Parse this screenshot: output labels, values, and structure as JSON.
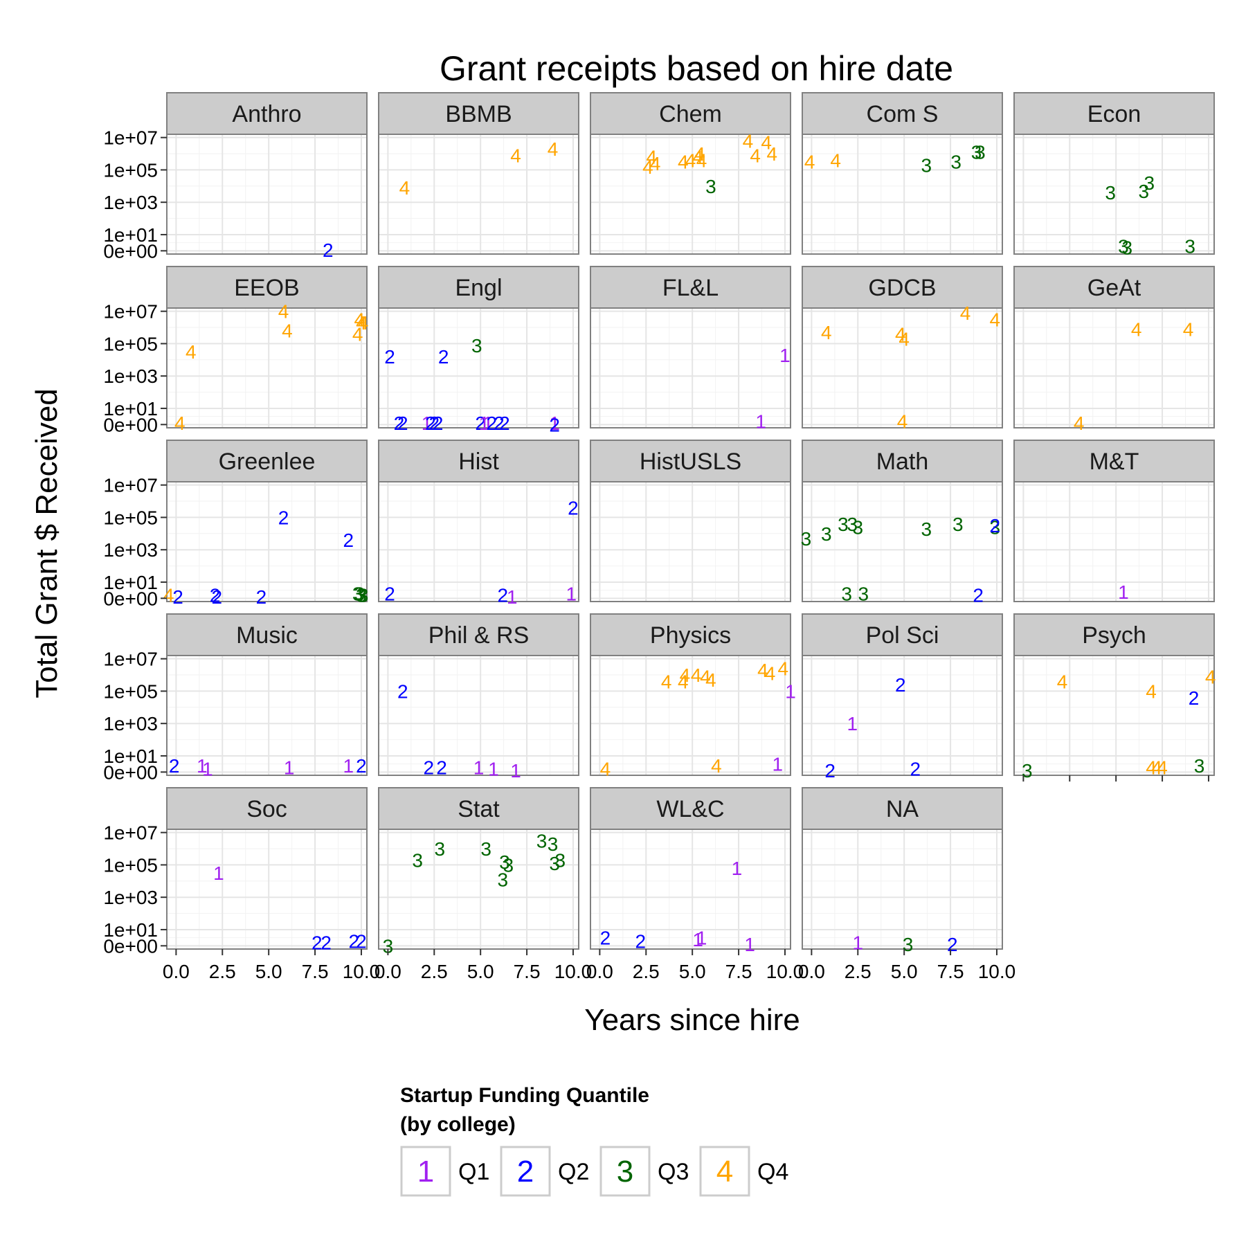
{
  "chart_data": {
    "type": "scatter",
    "title": "Grant receipts based on hire date",
    "xlabel": "Years since hire",
    "ylabel": "Total Grant $ Received",
    "x_ticks": [
      "0.0",
      "2.5",
      "5.0",
      "7.5",
      "10.0"
    ],
    "xlim": [
      -0.5,
      10.3
    ],
    "y_ticks": [
      "1e+07",
      "1e+05",
      "1e+03",
      "1e+01",
      "0e+00"
    ],
    "y_scale": "log10(y+1)",
    "ylim_log10": [
      -0.2,
      7.2
    ],
    "grid": true,
    "legend": {
      "title_line1": "Startup Funding Quantile",
      "title_line2": "(by college)",
      "position": "bottom",
      "entries": [
        {
          "key": "1",
          "label": "Q1",
          "color": "#a020f0"
        },
        {
          "key": "2",
          "label": "Q2",
          "color": "#0000ff"
        },
        {
          "key": "3",
          "label": "Q3",
          "color": "#006400"
        },
        {
          "key": "4",
          "label": "Q4",
          "color": "#ffa500"
        }
      ]
    },
    "panels": [
      {
        "name": "Anthro",
        "points": [
          [
            8.2,
            0.05,
            "2"
          ]
        ]
      },
      {
        "name": "BBMB",
        "points": [
          [
            0.9,
            3.9,
            "4"
          ],
          [
            6.9,
            5.9,
            "4"
          ],
          [
            8.9,
            6.3,
            "4"
          ]
        ]
      },
      {
        "name": "Chem",
        "points": [
          [
            2.6,
            5.2,
            "4"
          ],
          [
            2.8,
            5.8,
            "4"
          ],
          [
            3.0,
            5.4,
            "4"
          ],
          [
            4.5,
            5.5,
            "4"
          ],
          [
            4.9,
            5.6,
            "4"
          ],
          [
            5.3,
            5.8,
            "4"
          ],
          [
            5.4,
            6.0,
            "4"
          ],
          [
            5.5,
            5.6,
            "4"
          ],
          [
            6.0,
            4.0,
            "3"
          ],
          [
            8.0,
            6.8,
            "4"
          ],
          [
            8.4,
            5.9,
            "4"
          ],
          [
            9.0,
            6.7,
            "4"
          ],
          [
            9.3,
            6.0,
            "4"
          ]
        ]
      },
      {
        "name": "Com S",
        "points": [
          [
            -0.1,
            5.5,
            "4"
          ],
          [
            1.3,
            5.6,
            "4"
          ],
          [
            6.2,
            5.3,
            "3"
          ],
          [
            7.8,
            5.5,
            "3"
          ],
          [
            8.9,
            6.1,
            "3"
          ],
          [
            9.1,
            6.1,
            "3"
          ]
        ]
      },
      {
        "name": "Econ",
        "points": [
          [
            4.7,
            3.6,
            "3"
          ],
          [
            6.5,
            3.7,
            "3"
          ],
          [
            6.8,
            4.2,
            "3"
          ],
          [
            5.4,
            0.3,
            "3"
          ],
          [
            5.6,
            0.2,
            "3"
          ],
          [
            9.0,
            0.3,
            "3"
          ]
        ]
      },
      {
        "name": "EEOB",
        "points": [
          [
            0.2,
            0.1,
            "4"
          ],
          [
            0.8,
            4.5,
            "4"
          ],
          [
            5.8,
            7.0,
            "4"
          ],
          [
            6.0,
            5.8,
            "4"
          ],
          [
            9.9,
            6.5,
            "4"
          ],
          [
            10.0,
            6.3,
            "4"
          ],
          [
            10.1,
            6.3,
            "4"
          ],
          [
            9.8,
            5.6,
            "4"
          ]
        ]
      },
      {
        "name": "Engl",
        "points": [
          [
            0.1,
            4.2,
            "2"
          ],
          [
            0.6,
            0.1,
            "2"
          ],
          [
            0.8,
            0.1,
            "2"
          ],
          [
            2.1,
            0.1,
            "1"
          ],
          [
            2.3,
            0.1,
            "2"
          ],
          [
            2.5,
            0.1,
            "2"
          ],
          [
            2.7,
            0.1,
            "2"
          ],
          [
            3.0,
            4.2,
            "2"
          ],
          [
            4.8,
            4.9,
            "3"
          ],
          [
            5.0,
            0.1,
            "2"
          ],
          [
            5.2,
            0.1,
            "1"
          ],
          [
            5.4,
            0.1,
            "1"
          ],
          [
            5.6,
            0.1,
            "2"
          ],
          [
            6.0,
            0.1,
            "2"
          ],
          [
            6.3,
            0.1,
            "2"
          ],
          [
            9.0,
            0.1,
            "1"
          ],
          [
            9.0,
            0.0,
            "2"
          ]
        ]
      },
      {
        "name": "FL&L",
        "points": [
          [
            10.0,
            4.3,
            "1"
          ],
          [
            8.7,
            0.2,
            "1"
          ]
        ]
      },
      {
        "name": "GDCB",
        "points": [
          [
            0.8,
            5.7,
            "4"
          ],
          [
            4.8,
            5.6,
            "4"
          ],
          [
            5.0,
            5.3,
            "4"
          ],
          [
            8.3,
            6.9,
            "4"
          ],
          [
            9.9,
            6.5,
            "4"
          ],
          [
            4.9,
            0.2,
            "4"
          ]
        ]
      },
      {
        "name": "GeAt",
        "points": [
          [
            3.0,
            0.1,
            "4"
          ],
          [
            6.1,
            5.9,
            "4"
          ],
          [
            8.9,
            5.9,
            "4"
          ]
        ]
      },
      {
        "name": "Greenlee",
        "points": [
          [
            -0.4,
            0.2,
            "4"
          ],
          [
            0.1,
            0.1,
            "2"
          ],
          [
            2.1,
            0.2,
            "2"
          ],
          [
            2.2,
            0.1,
            "2"
          ],
          [
            4.6,
            0.1,
            "2"
          ],
          [
            5.8,
            5.0,
            "2"
          ],
          [
            9.3,
            3.6,
            "2"
          ],
          [
            9.8,
            0.3,
            "3"
          ],
          [
            9.9,
            0.3,
            "3"
          ],
          [
            10.0,
            0.2,
            "3"
          ],
          [
            10.1,
            0.2,
            "3"
          ]
        ]
      },
      {
        "name": "Hist",
        "points": [
          [
            0.1,
            0.3,
            "2"
          ],
          [
            6.2,
            0.2,
            "2"
          ],
          [
            6.7,
            0.1,
            "1"
          ],
          [
            9.9,
            0.3,
            "1"
          ],
          [
            10.0,
            5.6,
            "2"
          ]
        ]
      },
      {
        "name": "HistUSLS",
        "points": []
      },
      {
        "name": "Math",
        "points": [
          [
            -0.3,
            3.7,
            "3"
          ],
          [
            0.8,
            4.0,
            "3"
          ],
          [
            1.7,
            4.6,
            "3"
          ],
          [
            2.2,
            4.6,
            "3"
          ],
          [
            2.5,
            4.4,
            "3"
          ],
          [
            6.2,
            4.3,
            "3"
          ],
          [
            7.9,
            4.6,
            "3"
          ],
          [
            9.9,
            4.4,
            "3"
          ],
          [
            9.9,
            4.5,
            "2"
          ],
          [
            1.9,
            0.3,
            "3"
          ],
          [
            2.8,
            0.3,
            "3"
          ],
          [
            9.0,
            0.2,
            "2"
          ]
        ]
      },
      {
        "name": "M&T",
        "points": [
          [
            5.4,
            0.4,
            "1"
          ]
        ]
      },
      {
        "name": "Music",
        "points": [
          [
            -0.1,
            0.4,
            "2"
          ],
          [
            1.4,
            0.4,
            "1"
          ],
          [
            1.7,
            0.2,
            "1"
          ],
          [
            6.1,
            0.3,
            "1"
          ],
          [
            9.3,
            0.4,
            "1"
          ],
          [
            10.0,
            0.4,
            "2"
          ]
        ]
      },
      {
        "name": "Phil & RS",
        "points": [
          [
            0.8,
            5.0,
            "2"
          ],
          [
            2.2,
            0.3,
            "2"
          ],
          [
            2.9,
            0.3,
            "2"
          ],
          [
            4.9,
            0.3,
            "1"
          ],
          [
            5.7,
            0.2,
            "1"
          ],
          [
            6.9,
            0.1,
            "1"
          ]
        ]
      },
      {
        "name": "Physics",
        "points": [
          [
            3.6,
            5.6,
            "4"
          ],
          [
            4.5,
            5.6,
            "4"
          ],
          [
            4.6,
            6.0,
            "4"
          ],
          [
            5.2,
            6.0,
            "4"
          ],
          [
            5.7,
            5.9,
            "4"
          ],
          [
            6.0,
            5.7,
            "4"
          ],
          [
            8.8,
            6.3,
            "4"
          ],
          [
            9.2,
            6.1,
            "4"
          ],
          [
            9.9,
            6.4,
            "4"
          ],
          [
            10.3,
            5.0,
            "1"
          ],
          [
            0.3,
            0.2,
            "4"
          ],
          [
            6.3,
            0.4,
            "4"
          ],
          [
            9.6,
            0.5,
            "1"
          ]
        ]
      },
      {
        "name": "Pol Sci",
        "points": [
          [
            1.0,
            0.1,
            "2"
          ],
          [
            2.2,
            3.0,
            "1"
          ],
          [
            4.8,
            5.4,
            "2"
          ],
          [
            5.6,
            0.2,
            "2"
          ]
        ]
      },
      {
        "name": "Psych",
        "points": [
          [
            0.2,
            0.1,
            "3"
          ],
          [
            2.1,
            5.6,
            "4"
          ],
          [
            6.9,
            5.0,
            "4"
          ],
          [
            9.2,
            4.6,
            "2"
          ],
          [
            10.1,
            5.9,
            "4"
          ],
          [
            6.9,
            0.3,
            "4"
          ],
          [
            7.2,
            0.3,
            "4"
          ],
          [
            7.5,
            0.3,
            "4"
          ],
          [
            9.5,
            0.4,
            "3"
          ]
        ]
      },
      {
        "name": "Soc",
        "points": [
          [
            2.3,
            4.5,
            "1"
          ],
          [
            7.6,
            0.2,
            "2"
          ],
          [
            8.1,
            0.2,
            "2"
          ],
          [
            9.6,
            0.3,
            "2"
          ],
          [
            10.0,
            0.3,
            "2"
          ]
        ]
      },
      {
        "name": "Stat",
        "points": [
          [
            1.6,
            5.3,
            "3"
          ],
          [
            2.8,
            6.0,
            "3"
          ],
          [
            5.3,
            6.0,
            "3"
          ],
          [
            6.3,
            5.2,
            "3"
          ],
          [
            6.5,
            5.0,
            "3"
          ],
          [
            6.2,
            4.1,
            "3"
          ],
          [
            8.3,
            6.5,
            "3"
          ],
          [
            8.9,
            6.3,
            "3"
          ],
          [
            9.0,
            5.1,
            "3"
          ],
          [
            9.3,
            5.3,
            "3"
          ],
          [
            0.0,
            0.0,
            "3"
          ]
        ]
      },
      {
        "name": "WL&C",
        "points": [
          [
            0.3,
            0.5,
            "2"
          ],
          [
            2.2,
            0.3,
            "2"
          ],
          [
            5.3,
            0.4,
            "1"
          ],
          [
            5.5,
            0.5,
            "1"
          ],
          [
            7.4,
            4.8,
            "1"
          ],
          [
            8.1,
            0.1,
            "1"
          ]
        ]
      },
      {
        "name": "NA",
        "points": [
          [
            2.5,
            0.2,
            "1"
          ],
          [
            5.2,
            0.1,
            "3"
          ],
          [
            7.6,
            0.1,
            "2"
          ]
        ]
      }
    ]
  }
}
